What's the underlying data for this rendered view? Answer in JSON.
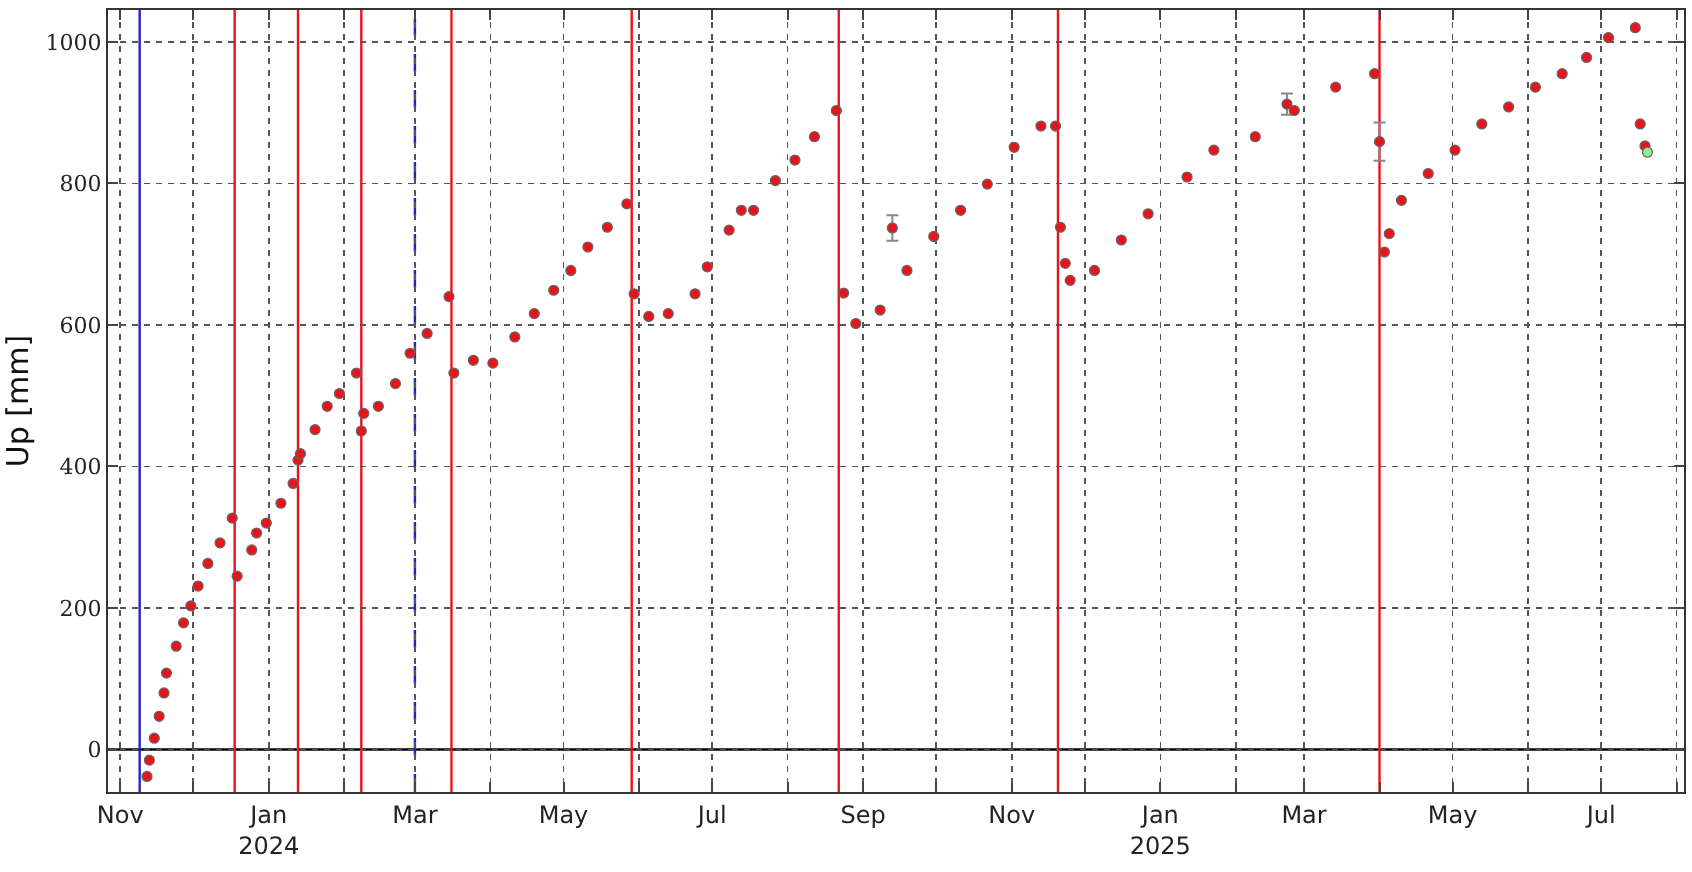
{
  "chart_data": {
    "type": "scatter",
    "ylabel": "Up [mm]",
    "marker": "circle",
    "grid": true,
    "xlim": [
      "2023-10-27",
      "2025-08-04"
    ],
    "ylim": [
      -60,
      1045
    ],
    "xticks": [
      {
        "value": "2023-11-01",
        "label": "Nov"
      },
      {
        "value": "2023-12-01",
        "label": null
      },
      {
        "value": "2024-01-01",
        "label": "Jan\n2024"
      },
      {
        "value": "2024-02-01",
        "label": null
      },
      {
        "value": "2024-03-01",
        "label": "Mar"
      },
      {
        "value": "2024-04-01",
        "label": null
      },
      {
        "value": "2024-05-01",
        "label": "May"
      },
      {
        "value": "2024-06-01",
        "label": null
      },
      {
        "value": "2024-07-01",
        "label": "Jul"
      },
      {
        "value": "2024-08-01",
        "label": null
      },
      {
        "value": "2024-09-01",
        "label": "Sep"
      },
      {
        "value": "2024-10-01",
        "label": null
      },
      {
        "value": "2024-11-01",
        "label": "Nov"
      },
      {
        "value": "2024-12-01",
        "label": null
      },
      {
        "value": "2025-01-01",
        "label": "Jan\n2025"
      },
      {
        "value": "2025-02-01",
        "label": null
      },
      {
        "value": "2025-03-01",
        "label": "Mar"
      },
      {
        "value": "2025-04-01",
        "label": null
      },
      {
        "value": "2025-05-01",
        "label": "May"
      },
      {
        "value": "2025-06-01",
        "label": null
      },
      {
        "value": "2025-07-01",
        "label": "Jul"
      },
      {
        "value": "2025-08-01",
        "label": null
      }
    ],
    "yticks": [
      0,
      200,
      400,
      600,
      800,
      1000
    ],
    "series": [
      {
        "color": "#e8141c",
        "x": [
          "2023-11-12",
          "2023-11-13",
          "2023-11-15",
          "2023-11-17",
          "2023-11-19",
          "2023-11-20",
          "2023-11-24",
          "2023-11-27",
          "2023-11-30",
          "2023-12-03",
          "2023-12-07",
          "2023-12-12",
          "2023-12-17",
          "2023-12-19",
          "2023-12-25",
          "2023-12-27",
          "2023-12-31",
          "2024-01-06",
          "2024-01-11",
          "2024-01-13",
          "2024-01-14",
          "2024-01-20",
          "2024-01-25",
          "2024-01-30",
          "2024-02-06",
          "2024-02-08",
          "2024-02-09",
          "2024-02-15",
          "2024-02-22",
          "2024-02-28",
          "2024-03-06",
          "2024-03-15",
          "2024-03-17",
          "2024-03-25",
          "2024-04-02",
          "2024-04-11",
          "2024-04-19",
          "2024-04-27",
          "2024-05-04",
          "2024-05-11",
          "2024-05-19",
          "2024-05-27",
          "2024-05-30",
          "2024-06-05",
          "2024-06-13",
          "2024-06-24",
          "2024-06-29",
          "2024-07-08",
          "2024-07-13",
          "2024-07-18",
          "2024-07-27",
          "2024-08-04",
          "2024-08-12",
          "2024-08-21",
          "2024-08-24",
          "2024-08-29",
          "2024-09-08",
          "2024-09-13",
          "2024-09-19",
          "2024-09-30",
          "2024-10-11",
          "2024-10-22",
          "2024-11-02",
          "2024-11-13",
          "2024-11-19",
          "2024-11-21",
          "2024-11-23",
          "2024-11-25",
          "2024-12-05",
          "2024-12-16",
          "2024-12-27",
          "2025-01-12",
          "2025-01-23",
          "2025-02-09",
          "2025-02-22",
          "2025-02-25",
          "2025-03-14",
          "2025-03-30",
          "2025-04-01",
          "2025-04-03",
          "2025-04-05",
          "2025-04-10",
          "2025-04-21",
          "2025-05-02",
          "2025-05-13",
          "2025-05-24",
          "2025-06-04",
          "2025-06-15",
          "2025-06-25",
          "2025-07-04",
          "2025-07-15",
          "2025-07-17",
          "2025-07-19"
        ],
        "values": [
          -38,
          -15,
          16,
          47,
          80,
          108,
          146,
          179,
          203,
          231,
          263,
          292,
          327,
          245,
          282,
          306,
          320,
          348,
          376,
          409,
          418,
          452,
          485,
          503,
          532,
          450,
          475,
          485,
          517,
          560,
          588,
          640,
          532,
          550,
          546,
          583,
          616,
          649,
          677,
          710,
          738,
          771,
          644,
          612,
          616,
          644,
          682,
          734,
          762,
          762,
          804,
          833,
          866,
          903,
          645,
          602,
          621,
          737,
          677,
          725,
          762,
          799,
          851,
          881,
          881,
          738,
          687,
          663,
          677,
          720,
          757,
          809,
          847,
          866,
          912,
          903,
          936,
          955,
          859,
          703,
          729,
          776,
          814,
          847,
          884,
          908,
          936,
          955,
          978,
          1006,
          1020,
          884,
          853
        ],
        "errors": [
          null,
          null,
          null,
          null,
          null,
          null,
          null,
          null,
          null,
          null,
          null,
          null,
          null,
          null,
          null,
          null,
          null,
          null,
          null,
          null,
          null,
          null,
          null,
          null,
          null,
          null,
          null,
          null,
          null,
          null,
          null,
          null,
          null,
          null,
          null,
          null,
          null,
          null,
          null,
          null,
          null,
          null,
          null,
          null,
          null,
          null,
          null,
          null,
          null,
          null,
          null,
          null,
          null,
          null,
          null,
          null,
          null,
          18,
          null,
          null,
          null,
          null,
          null,
          null,
          null,
          null,
          null,
          null,
          null,
          null,
          null,
          null,
          null,
          null,
          15,
          null,
          null,
          null,
          27,
          null,
          null,
          null,
          null,
          null,
          null,
          null,
          null,
          null,
          null,
          null,
          null,
          null,
          null
        ]
      },
      {
        "color": "#90ee90",
        "x": [
          "2025-07-20"
        ],
        "values": [
          844
        ]
      }
    ],
    "ref_lines": [
      {
        "axis": "y",
        "value": 0,
        "color": "#000000"
      },
      {
        "axis": "x",
        "value": "2023-11-09",
        "color": "#2222cc"
      },
      {
        "axis": "x",
        "value": "2023-12-18",
        "color": "#e8141c"
      },
      {
        "axis": "x",
        "value": "2024-01-13",
        "color": "#e8141c"
      },
      {
        "axis": "x",
        "value": "2024-02-08",
        "color": "#e8141c"
      },
      {
        "axis": "x",
        "value": "2024-03-01",
        "color": "#2222cc",
        "line_style": "dashed"
      },
      {
        "axis": "x",
        "value": "2024-03-16",
        "color": "#e8141c"
      },
      {
        "axis": "x",
        "value": "2024-05-29",
        "color": "#e8141c"
      },
      {
        "axis": "x",
        "value": "2024-08-22",
        "color": "#e8141c"
      },
      {
        "axis": "x",
        "value": "2024-11-20",
        "color": "#e8141c"
      },
      {
        "axis": "x",
        "value": "2025-04-01",
        "color": "#e8141c"
      }
    ]
  }
}
